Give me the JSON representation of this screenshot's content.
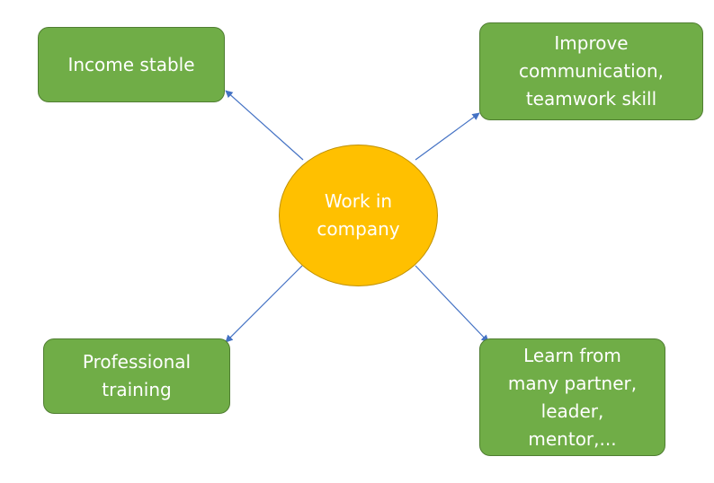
{
  "diagram": {
    "center": {
      "label": "Work in\ncompany"
    },
    "branches": [
      {
        "id": "income",
        "label": "Income stable"
      },
      {
        "id": "improve",
        "label": "Improve\ncommunication,\nteamwork skill"
      },
      {
        "id": "training",
        "label": "Professional\ntraining"
      },
      {
        "id": "learn",
        "label": "Learn from\nmany partner,\nleader,\nmentor,..."
      }
    ]
  },
  "colors": {
    "box_fill": "#70ad47",
    "box_border": "#507e32",
    "circle_fill": "#ffc000",
    "circle_border": "#bf9000",
    "arrow": "#4472c4",
    "text": "#ffffff"
  }
}
